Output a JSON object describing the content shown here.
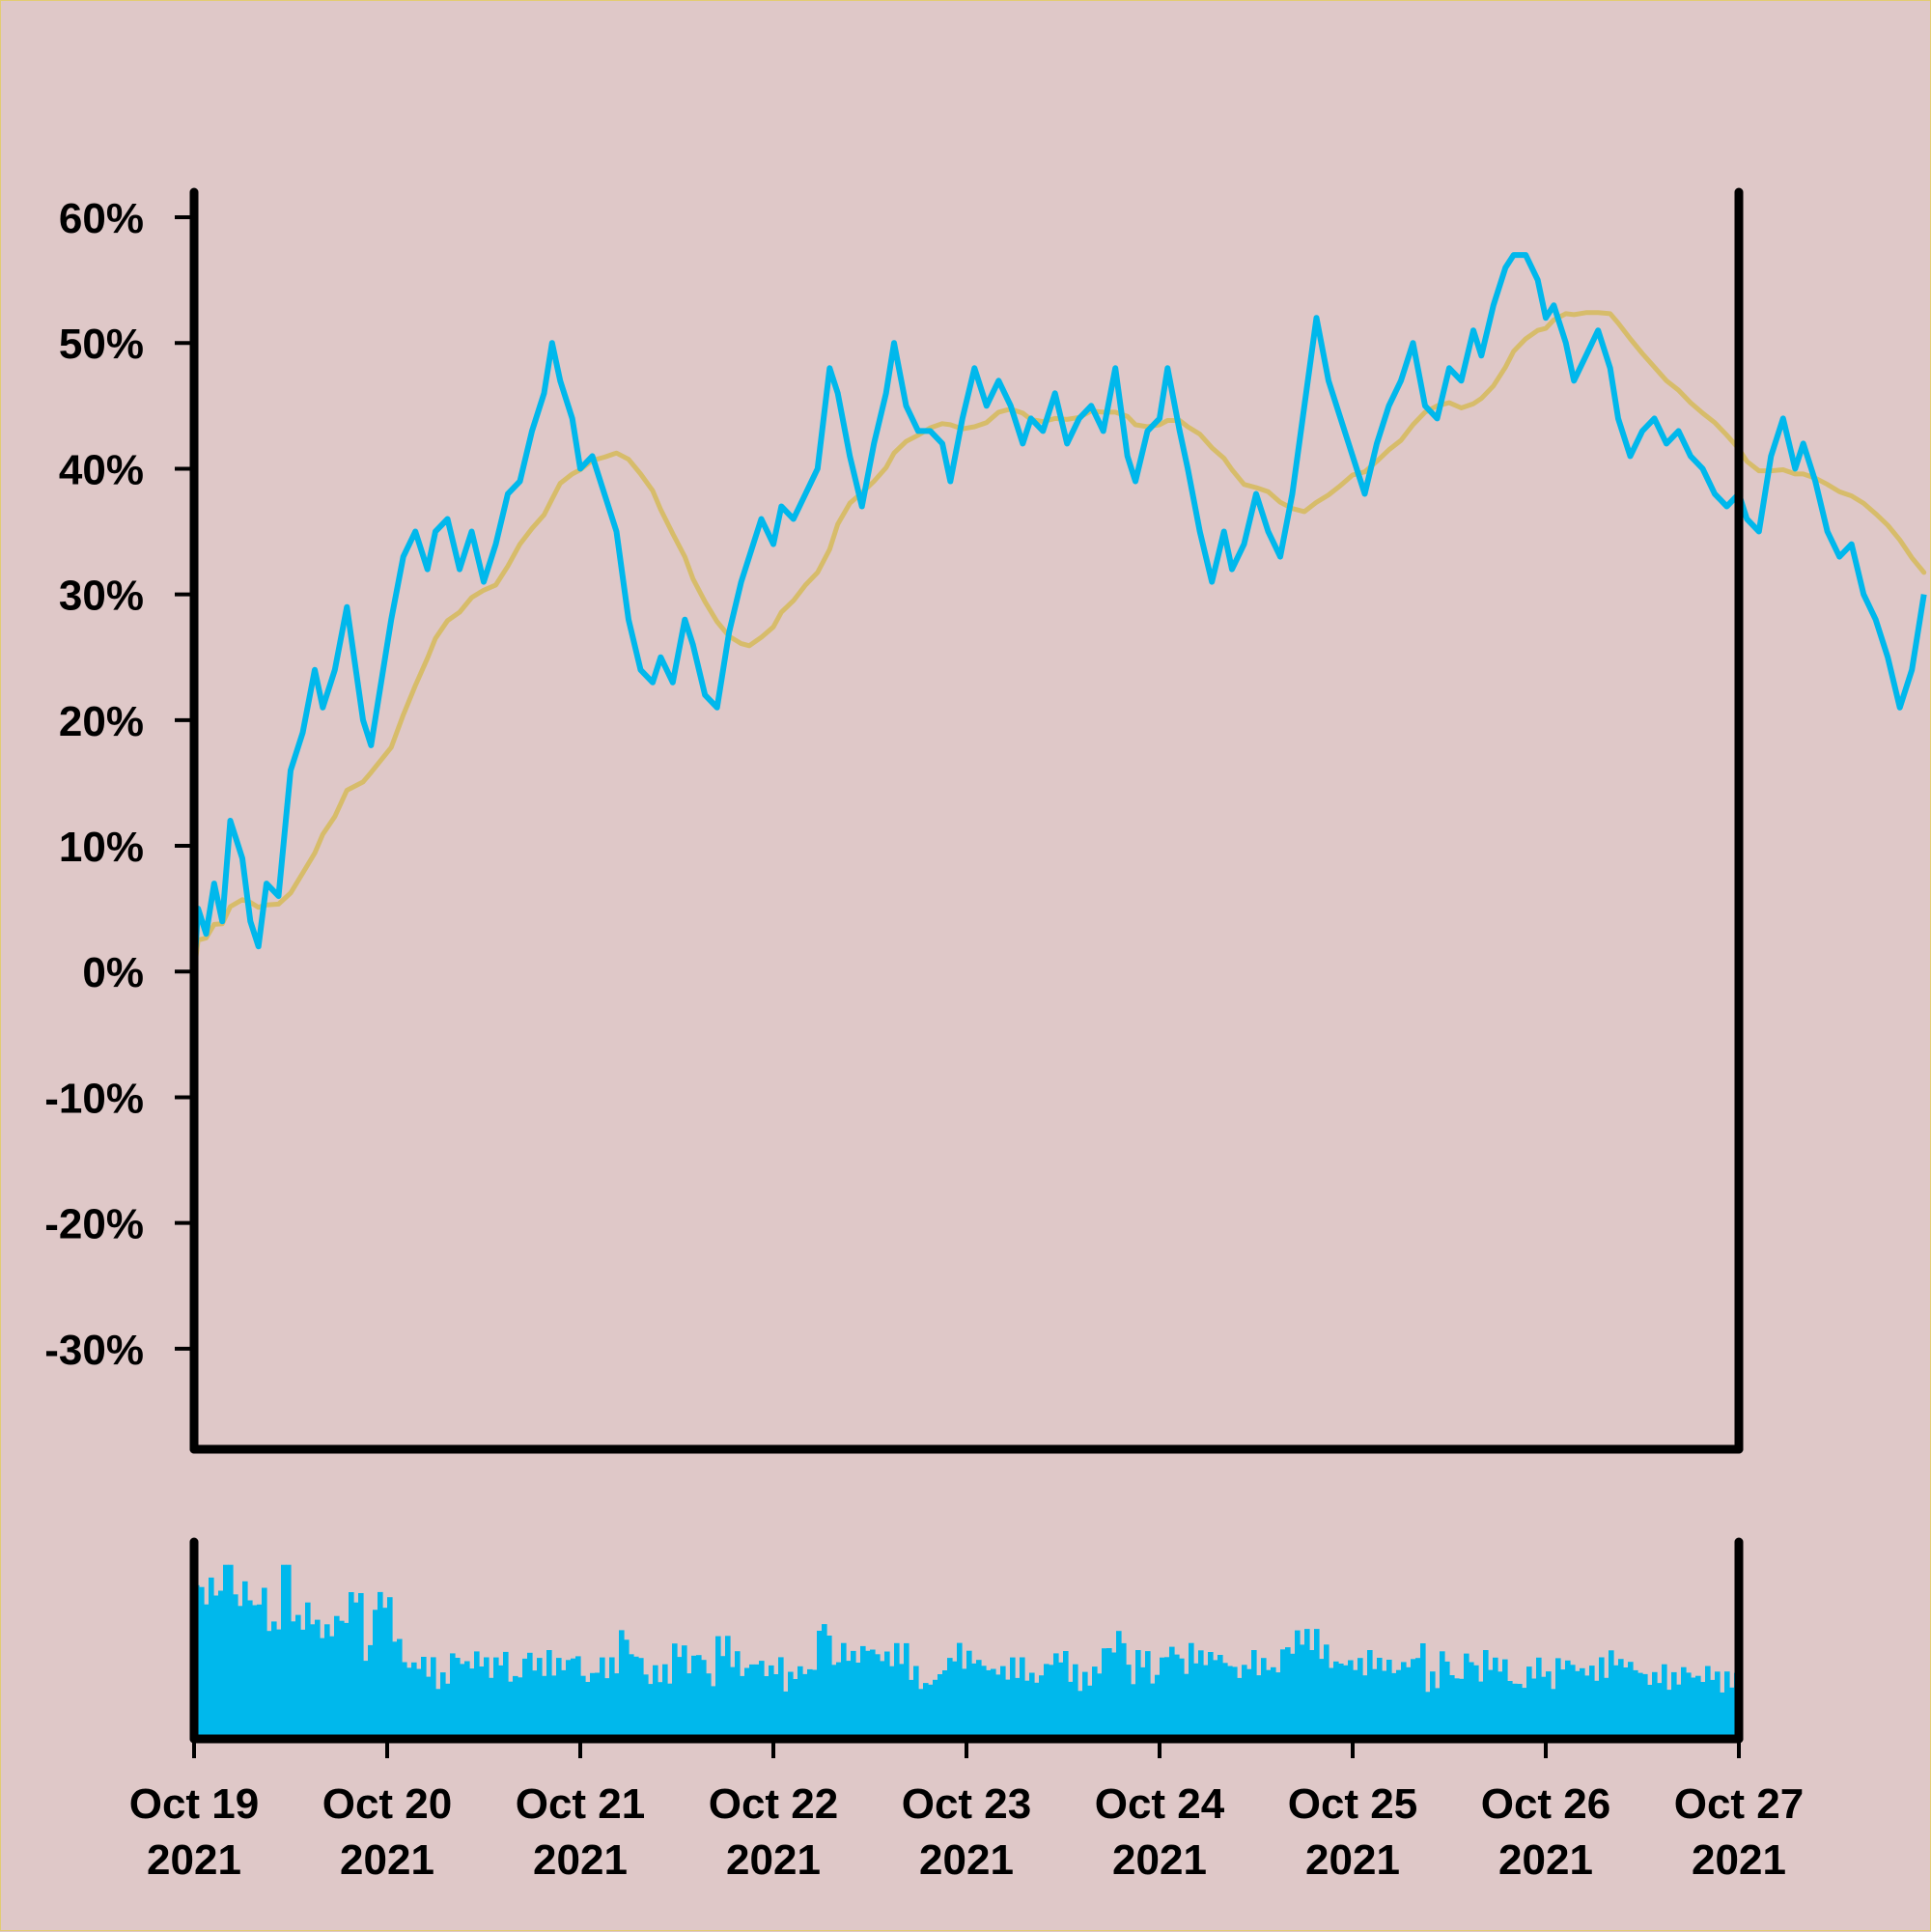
{
  "chart_data": {
    "type": "line",
    "ylim": [
      -38,
      62
    ],
    "yticks": [
      "60%",
      "50%",
      "40%",
      "30%",
      "20%",
      "10%",
      "0%",
      "-10%",
      "-20%",
      "-30%"
    ],
    "ytick_values": [
      60,
      50,
      40,
      30,
      20,
      10,
      0,
      -10,
      -20,
      -30
    ],
    "xlim": [
      "2021-10-19",
      "2021-10-27"
    ],
    "xticks": [
      {
        "line1": "Oct 19",
        "line2": "2021",
        "date": "2021-10-19"
      },
      {
        "line1": "Oct 20",
        "line2": "2021",
        "date": "2021-10-20"
      },
      {
        "line1": "Oct 21",
        "line2": "2021",
        "date": "2021-10-21"
      },
      {
        "line1": "Oct 22",
        "line2": "2021",
        "date": "2021-10-22"
      },
      {
        "line1": "Oct 23",
        "line2": "2021",
        "date": "2021-10-23"
      },
      {
        "line1": "Oct 24",
        "line2": "2021",
        "date": "2021-10-24"
      },
      {
        "line1": "Oct 25",
        "line2": "2021",
        "date": "2021-10-25"
      },
      {
        "line1": "Oct 26",
        "line2": "2021",
        "date": "2021-10-26"
      },
      {
        "line1": "Oct 27",
        "line2": "2021",
        "date": "2021-10-27"
      }
    ],
    "grid": false,
    "colors": {
      "price": "#00b8ec",
      "average": "#d7bc6a",
      "volume": "#00b8ec",
      "axis": "#000000",
      "background": "#dfc8c8"
    },
    "series": [
      {
        "role": "price",
        "points": [
          [
            "2021-10-19 00:00",
            0
          ],
          [
            "2021-10-19 00:30",
            5
          ],
          [
            "2021-10-19 01:30",
            3
          ],
          [
            "2021-10-19 02:30",
            7
          ],
          [
            "2021-10-19 03:30",
            4
          ],
          [
            "2021-10-19 04:30",
            12
          ],
          [
            "2021-10-19 06:00",
            9
          ],
          [
            "2021-10-19 07:00",
            4
          ],
          [
            "2021-10-19 08:00",
            2
          ],
          [
            "2021-10-19 09:00",
            7
          ],
          [
            "2021-10-19 10:30",
            6
          ],
          [
            "2021-10-19 12:00",
            16
          ],
          [
            "2021-10-19 13:30",
            19
          ],
          [
            "2021-10-19 15:00",
            24
          ],
          [
            "2021-10-19 16:00",
            21
          ],
          [
            "2021-10-19 17:30",
            24
          ],
          [
            "2021-10-19 19:00",
            29
          ],
          [
            "2021-10-19 21:00",
            20
          ],
          [
            "2021-10-19 22:00",
            18
          ],
          [
            "2021-10-20 00:30",
            28
          ],
          [
            "2021-10-20 02:00",
            33
          ],
          [
            "2021-10-20 03:30",
            35
          ],
          [
            "2021-10-20 05:00",
            32
          ],
          [
            "2021-10-20 06:00",
            35
          ],
          [
            "2021-10-20 07:30",
            36
          ],
          [
            "2021-10-20 09:00",
            32
          ],
          [
            "2021-10-20 10:30",
            35
          ],
          [
            "2021-10-20 12:00",
            31
          ],
          [
            "2021-10-20 13:30",
            34
          ],
          [
            "2021-10-20 15:00",
            38
          ],
          [
            "2021-10-20 16:30",
            39
          ],
          [
            "2021-10-20 18:00",
            43
          ],
          [
            "2021-10-20 19:30",
            46
          ],
          [
            "2021-10-20 20:30",
            50
          ],
          [
            "2021-10-20 21:30",
            47
          ],
          [
            "2021-10-20 23:00",
            44
          ],
          [
            "2021-10-21 00:00",
            40
          ],
          [
            "2021-10-21 01:30",
            41
          ],
          [
            "2021-10-21 03:00",
            38
          ],
          [
            "2021-10-21 04:30",
            35
          ],
          [
            "2021-10-21 06:00",
            28
          ],
          [
            "2021-10-21 07:30",
            24
          ],
          [
            "2021-10-21 09:00",
            23
          ],
          [
            "2021-10-21 10:00",
            25
          ],
          [
            "2021-10-21 11:30",
            23
          ],
          [
            "2021-10-21 13:00",
            28
          ],
          [
            "2021-10-21 14:00",
            26
          ],
          [
            "2021-10-21 15:30",
            22
          ],
          [
            "2021-10-21 17:00",
            21
          ],
          [
            "2021-10-21 18:30",
            27
          ],
          [
            "2021-10-21 20:00",
            31
          ],
          [
            "2021-10-21 21:00",
            33
          ],
          [
            "2021-10-21 22:30",
            36
          ],
          [
            "2021-10-22 00:00",
            34
          ],
          [
            "2021-10-22 01:00",
            37
          ],
          [
            "2021-10-22 02:30",
            36
          ],
          [
            "2021-10-22 04:00",
            38
          ],
          [
            "2021-10-22 05:30",
            40
          ],
          [
            "2021-10-22 07:00",
            48
          ],
          [
            "2021-10-22 08:00",
            46
          ],
          [
            "2021-10-22 09:30",
            41
          ],
          [
            "2021-10-22 11:00",
            37
          ],
          [
            "2021-10-22 12:30",
            42
          ],
          [
            "2021-10-22 14:00",
            46
          ],
          [
            "2021-10-22 15:00",
            50
          ],
          [
            "2021-10-22 16:30",
            45
          ],
          [
            "2021-10-22 18:00",
            43
          ],
          [
            "2021-10-22 19:30",
            43
          ],
          [
            "2021-10-22 21:00",
            42
          ],
          [
            "2021-10-22 22:00",
            39
          ],
          [
            "2021-10-22 23:30",
            44
          ],
          [
            "2021-10-23 01:00",
            48
          ],
          [
            "2021-10-23 02:30",
            45
          ],
          [
            "2021-10-23 04:00",
            47
          ],
          [
            "2021-10-23 05:30",
            45
          ],
          [
            "2021-10-23 07:00",
            42
          ],
          [
            "2021-10-23 08:00",
            44
          ],
          [
            "2021-10-23 09:30",
            43
          ],
          [
            "2021-10-23 11:00",
            46
          ],
          [
            "2021-10-23 12:30",
            42
          ],
          [
            "2021-10-23 14:00",
            44
          ],
          [
            "2021-10-23 15:30",
            45
          ],
          [
            "2021-10-23 17:00",
            43
          ],
          [
            "2021-10-23 18:30",
            48
          ],
          [
            "2021-10-23 20:00",
            41
          ],
          [
            "2021-10-23 21:00",
            39
          ],
          [
            "2021-10-23 22:30",
            43
          ],
          [
            "2021-10-24 00:00",
            44
          ],
          [
            "2021-10-24 01:00",
            48
          ],
          [
            "2021-10-24 02:30",
            43
          ],
          [
            "2021-10-24 03:30",
            40
          ],
          [
            "2021-10-24 05:00",
            35
          ],
          [
            "2021-10-24 06:30",
            31
          ],
          [
            "2021-10-24 08:00",
            35
          ],
          [
            "2021-10-24 09:00",
            32
          ],
          [
            "2021-10-24 10:30",
            34
          ],
          [
            "2021-10-24 12:00",
            38
          ],
          [
            "2021-10-24 13:30",
            35
          ],
          [
            "2021-10-24 15:00",
            33
          ],
          [
            "2021-10-24 16:30",
            38
          ],
          [
            "2021-10-24 18:00",
            45
          ],
          [
            "2021-10-24 19:30",
            52
          ],
          [
            "2021-10-24 21:00",
            47
          ],
          [
            "2021-10-24 22:30",
            44
          ],
          [
            "2021-10-25 00:00",
            41
          ],
          [
            "2021-10-25 01:30",
            38
          ],
          [
            "2021-10-25 03:00",
            42
          ],
          [
            "2021-10-25 04:30",
            45
          ],
          [
            "2021-10-25 06:00",
            47
          ],
          [
            "2021-10-25 07:30",
            50
          ],
          [
            "2021-10-25 09:00",
            45
          ],
          [
            "2021-10-25 10:30",
            44
          ],
          [
            "2021-10-25 12:00",
            48
          ],
          [
            "2021-10-25 13:30",
            47
          ],
          [
            "2021-10-25 15:00",
            51
          ],
          [
            "2021-10-25 16:00",
            49
          ],
          [
            "2021-10-25 17:30",
            53
          ],
          [
            "2021-10-25 19:00",
            56
          ],
          [
            "2021-10-25 20:00",
            57
          ],
          [
            "2021-10-25 21:30",
            57
          ],
          [
            "2021-10-25 23:00",
            55
          ],
          [
            "2021-10-26 00:00",
            52
          ],
          [
            "2021-10-26 01:00",
            53
          ],
          [
            "2021-10-26 02:30",
            50
          ],
          [
            "2021-10-26 03:30",
            47
          ],
          [
            "2021-10-26 05:00",
            49
          ],
          [
            "2021-10-26 06:30",
            51
          ],
          [
            "2021-10-26 08:00",
            48
          ],
          [
            "2021-10-26 09:00",
            44
          ],
          [
            "2021-10-26 10:30",
            41
          ],
          [
            "2021-10-26 12:00",
            43
          ],
          [
            "2021-10-26 13:30",
            44
          ],
          [
            "2021-10-26 15:00",
            42
          ],
          [
            "2021-10-26 16:30",
            43
          ],
          [
            "2021-10-26 18:00",
            41
          ],
          [
            "2021-10-26 19:30",
            40
          ],
          [
            "2021-10-26 21:00",
            38
          ],
          [
            "2021-10-26 22:30",
            37
          ],
          [
            "2021-10-27 00:00",
            38
          ],
          [
            "2021-10-27 01:00",
            36
          ],
          [
            "2021-10-27 02:30",
            35
          ],
          [
            "2021-10-27 04:00",
            41
          ],
          [
            "2021-10-27 05:30",
            44
          ],
          [
            "2021-10-27 07:00",
            40
          ],
          [
            "2021-10-27 08:00",
            42
          ],
          [
            "2021-10-27 09:30",
            39
          ],
          [
            "2021-10-27 11:00",
            35
          ],
          [
            "2021-10-27 12:30",
            33
          ],
          [
            "2021-10-27 14:00",
            34
          ],
          [
            "2021-10-27 15:30",
            30
          ],
          [
            "2021-10-27 17:00",
            28
          ],
          [
            "2021-10-27 18:30",
            25
          ],
          [
            "2021-10-27 20:00",
            21
          ],
          [
            "2021-10-27 21:30",
            24
          ],
          [
            "2021-10-27 23:00",
            30
          ]
        ]
      }
    ]
  }
}
